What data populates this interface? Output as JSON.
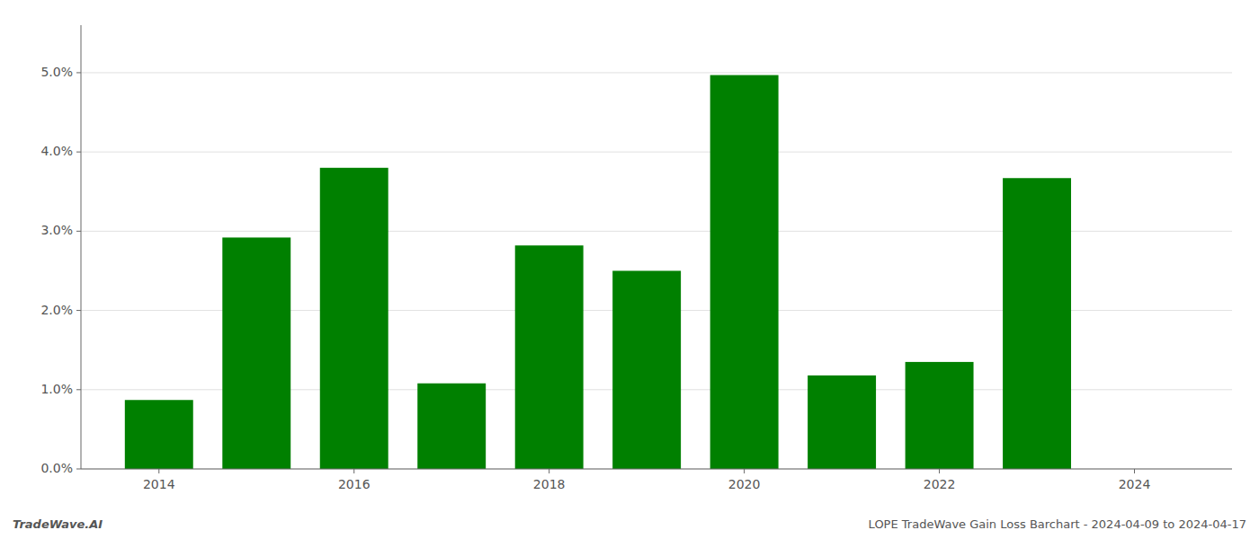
{
  "chart_data": {
    "type": "bar",
    "x": [
      2014,
      2015,
      2016,
      2017,
      2018,
      2019,
      2020,
      2021,
      2022,
      2023
    ],
    "values": [
      0.0087,
      0.0292,
      0.038,
      0.0108,
      0.0282,
      0.025,
      0.0497,
      0.0118,
      0.0135,
      0.0367
    ],
    "color": "#008000",
    "xlim": [
      2013.2,
      2025.0
    ],
    "xticks": [
      2014,
      2016,
      2018,
      2020,
      2022,
      2024
    ],
    "ylim": [
      0.0,
      0.056
    ],
    "yticks": [
      {
        "value": 0.0,
        "label": "0.0%"
      },
      {
        "value": 0.01,
        "label": "1.0%"
      },
      {
        "value": 0.02,
        "label": "2.0%"
      },
      {
        "value": 0.03,
        "label": "3.0%"
      },
      {
        "value": 0.04,
        "label": "4.0%"
      },
      {
        "value": 0.05,
        "label": "5.0%"
      }
    ],
    "grid": true,
    "annotations": [
      "TradeWave.AI",
      "LOPE TradeWave Gain Loss Barchart - 2024-04-09 to 2024-04-17"
    ]
  }
}
